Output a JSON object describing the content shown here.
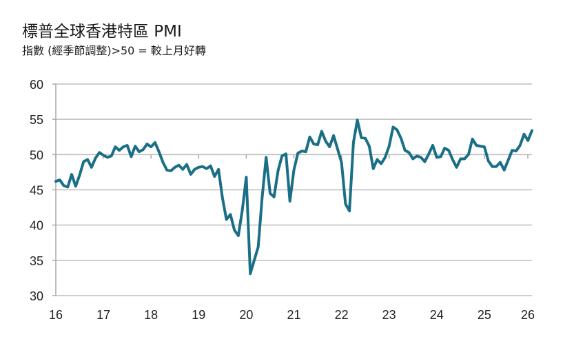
{
  "chart_data": {
    "type": "line",
    "title": "標普全球香港特區 PMI",
    "subtitle": "指數  (經季節調整)>50  = 較上月好轉",
    "xlabel": "",
    "ylabel": "",
    "ylim": [
      30,
      60
    ],
    "yticks": [
      "30",
      "35",
      "40",
      "45",
      "50",
      "55",
      "60"
    ],
    "xticks": [
      "16",
      "17",
      "18",
      "19",
      "20",
      "21",
      "22",
      "23",
      "24",
      "25",
      "26"
    ],
    "xlim": [
      "2016-01",
      "2026-01"
    ],
    "grid": true,
    "line_color": "#1a6f86",
    "series": [
      {
        "start": "2016-01",
        "frequency": "monthly",
        "values": [
          46.2,
          46.4,
          45.6,
          45.4,
          47.2,
          45.5,
          47.1,
          49.0,
          49.3,
          48.2,
          49.5,
          50.3,
          49.9,
          49.6,
          49.8,
          51.1,
          50.6,
          51.1,
          51.3,
          49.7,
          51.2,
          50.4,
          50.7,
          51.5,
          51.1,
          51.7,
          50.4,
          48.9,
          47.8,
          47.7,
          48.2,
          48.5,
          47.9,
          48.6,
          47.2,
          47.9,
          48.2,
          48.3,
          48.0,
          48.4,
          46.9,
          47.9,
          43.8,
          40.8,
          41.5,
          39.3,
          38.5,
          42.1,
          46.8,
          33.1,
          35.0,
          36.9,
          43.9,
          49.6,
          44.5,
          44.0,
          47.7,
          49.8,
          50.1,
          43.4,
          47.8,
          50.2,
          50.5,
          50.4,
          52.5,
          51.5,
          51.4,
          53.3,
          51.9,
          51.1,
          52.7,
          50.8,
          48.9,
          43.0,
          42.0,
          51.7,
          54.9,
          52.4,
          52.3,
          51.2,
          48.0,
          49.3,
          48.7,
          49.6,
          51.2,
          53.9,
          53.5,
          52.3,
          50.6,
          50.3,
          49.4,
          49.8,
          49.6,
          49.0,
          50.1,
          51.3,
          49.6,
          49.7,
          50.9,
          50.6,
          49.3,
          48.2,
          49.4,
          49.4,
          50.0,
          52.2,
          51.3,
          51.2,
          51.1,
          49.1,
          48.3,
          48.3,
          48.9,
          47.8,
          49.2,
          50.6,
          50.5,
          51.3,
          52.9,
          52.0,
          53.4
        ]
      }
    ]
  }
}
